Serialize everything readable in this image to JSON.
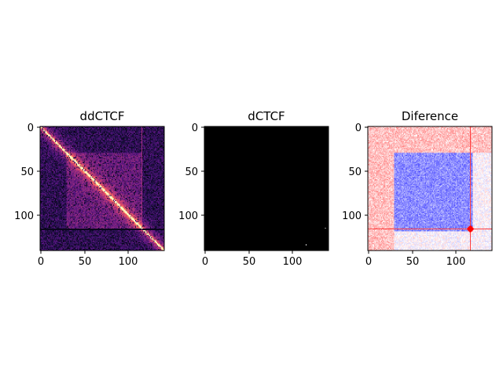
{
  "figure": {
    "background": "#ffffff"
  },
  "chart_data": [
    {
      "type": "heatmap",
      "title": "ddCTCF",
      "colormap": "magma",
      "size": 141,
      "xlim": [
        0,
        141
      ],
      "ylim": [
        141,
        0
      ],
      "xticks": [
        0,
        50,
        100
      ],
      "yticks": [
        0,
        50,
        100
      ],
      "xtick_labels": [
        "0",
        "50",
        "100"
      ],
      "ytick_labels": [
        "0",
        "50",
        "100"
      ],
      "features": {
        "diagonal": "bright yellow main diagonal",
        "domain_boundaries": [
          30,
          115
        ],
        "dark_row": 116,
        "background": "dark purple, noisy"
      },
      "colors": {
        "low": "#000004",
        "mid": "#b73779",
        "high": "#fcfdbf"
      }
    },
    {
      "type": "heatmap",
      "title": "dCTCF",
      "colormap": "magma",
      "size": 141,
      "xlim": [
        0,
        141
      ],
      "ylim": [
        141,
        0
      ],
      "xticks": [
        0,
        50,
        100
      ],
      "yticks": [
        0,
        50,
        100
      ],
      "xtick_labels": [
        "0",
        "50",
        "100"
      ],
      "ytick_labels": [
        "0",
        "50",
        "100"
      ],
      "features": {
        "background": "almost entirely black",
        "bright_points": [
          [
            115,
            134
          ],
          [
            137,
            115
          ]
        ]
      },
      "colors": {
        "low": "#000000",
        "high": "#ffffff"
      }
    },
    {
      "type": "heatmap",
      "title": "Diference",
      "colormap": "bwr",
      "size": 141,
      "xlim": [
        0,
        141
      ],
      "ylim": [
        141,
        0
      ],
      "xticks": [
        0,
        50,
        100
      ],
      "yticks": [
        0,
        50,
        100
      ],
      "xtick_labels": [
        "0",
        "50",
        "100"
      ],
      "ytick_labels": [
        "0",
        "50",
        "100"
      ],
      "features": {
        "blue_domain": [
          30,
          118
        ],
        "red_cross_index": 116,
        "red_cross_center": [
          116,
          116
        ]
      },
      "colors": {
        "negative": "#3b3bff",
        "zero": "#ffffff",
        "positive": "#d40000"
      }
    }
  ]
}
